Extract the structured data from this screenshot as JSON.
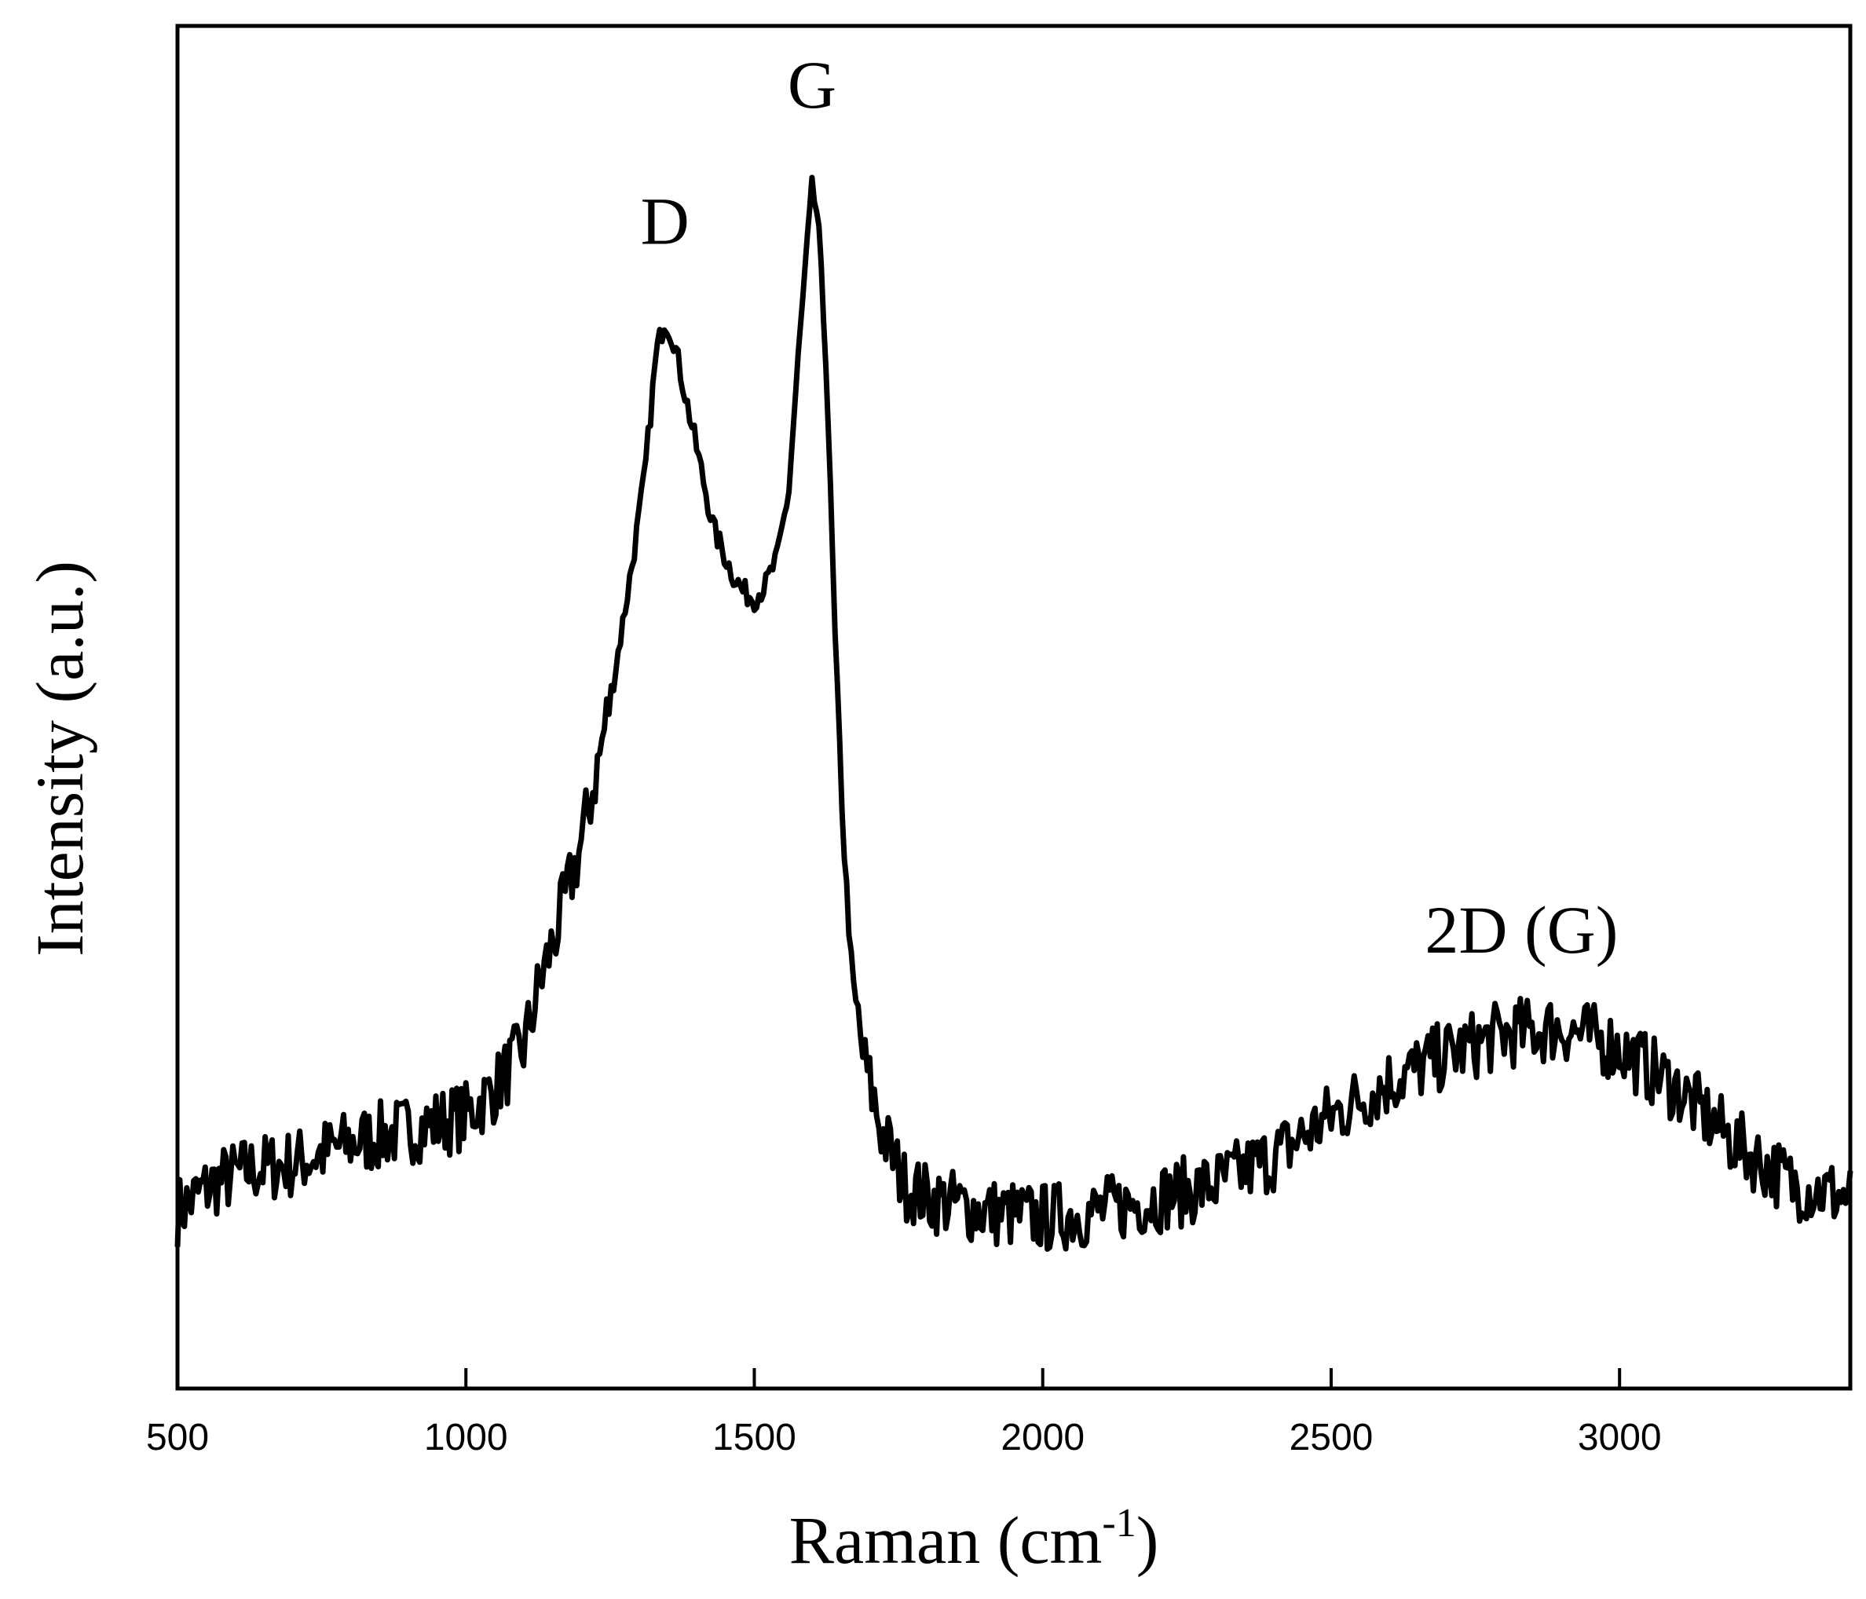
{
  "chart_data": {
    "type": "line",
    "xlabel": "Raman (cm",
    "xlabel_sup": "-1",
    "xlabel_end": ")",
    "ylabel": "Intensity (a.u.)",
    "xlim": [
      500,
      3400
    ],
    "ylim": [
      0,
      100
    ],
    "x_ticks": [
      500,
      1000,
      1500,
      2000,
      2500,
      3000
    ],
    "x_tick_labels": [
      "500",
      "1000",
      "1500",
      "2000",
      "2500",
      "3000"
    ],
    "y_ticks_labeled": false,
    "grid": false,
    "legend": "none",
    "series": [
      {
        "color": "#000000",
        "points": [
          [
            500,
            13
          ],
          [
            560,
            15
          ],
          [
            620,
            16
          ],
          [
            700,
            16.5
          ],
          [
            800,
            18
          ],
          [
            900,
            19
          ],
          [
            1000,
            20
          ],
          [
            1050,
            22
          ],
          [
            1100,
            25
          ],
          [
            1130,
            30
          ],
          [
            1160,
            34
          ],
          [
            1200,
            40
          ],
          [
            1230,
            46
          ],
          [
            1260,
            53
          ],
          [
            1290,
            61
          ],
          [
            1310,
            67
          ],
          [
            1330,
            76
          ],
          [
            1345,
            78.5
          ],
          [
            1360,
            77
          ],
          [
            1380,
            73
          ],
          [
            1400,
            69
          ],
          [
            1430,
            63
          ],
          [
            1460,
            60
          ],
          [
            1480,
            58.5
          ],
          [
            1500,
            58
          ],
          [
            1520,
            59
          ],
          [
            1540,
            61
          ],
          [
            1560,
            66
          ],
          [
            1575,
            75
          ],
          [
            1590,
            83
          ],
          [
            1600,
            88
          ],
          [
            1610,
            86
          ],
          [
            1625,
            75
          ],
          [
            1640,
            55
          ],
          [
            1655,
            40
          ],
          [
            1670,
            30
          ],
          [
            1690,
            24
          ],
          [
            1720,
            19
          ],
          [
            1760,
            15
          ],
          [
            1800,
            14
          ],
          [
            1900,
            13
          ],
          [
            2000,
            12.5
          ],
          [
            2100,
            13
          ],
          [
            2200,
            14
          ],
          [
            2300,
            15
          ],
          [
            2400,
            17
          ],
          [
            2500,
            20
          ],
          [
            2600,
            22.5
          ],
          [
            2700,
            24.5
          ],
          [
            2800,
            26
          ],
          [
            2900,
            26.5
          ],
          [
            3000,
            25
          ],
          [
            3100,
            22
          ],
          [
            3200,
            18
          ],
          [
            3300,
            15
          ],
          [
            3400,
            14
          ]
        ]
      }
    ],
    "annotations": [
      {
        "text": "D",
        "x": 1345,
        "y": 84
      },
      {
        "text": "G",
        "x": 1600,
        "y": 94
      },
      {
        "text": "2D (G)",
        "x": 2830,
        "y": 32
      }
    ]
  }
}
